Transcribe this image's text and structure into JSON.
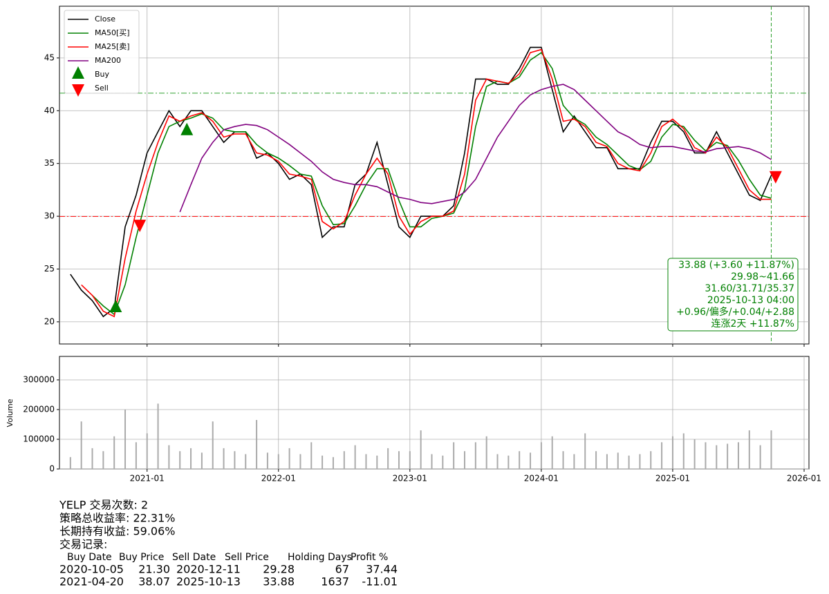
{
  "chart_data": [
    {
      "type": "line",
      "x": [
        "2020-06",
        "2020-07",
        "2020-08",
        "2020-09",
        "2020-10",
        "2020-11",
        "2020-12",
        "2021-01",
        "2021-02",
        "2021-03",
        "2021-04",
        "2021-05",
        "2021-06",
        "2021-07",
        "2021-08",
        "2021-09",
        "2021-10",
        "2021-11",
        "2021-12",
        "2022-01",
        "2022-02",
        "2022-03",
        "2022-04",
        "2022-05",
        "2022-06",
        "2022-07",
        "2022-08",
        "2022-09",
        "2022-10",
        "2022-11",
        "2022-12",
        "2023-01",
        "2023-02",
        "2023-03",
        "2023-04",
        "2023-05",
        "2023-06",
        "2023-07",
        "2023-08",
        "2023-09",
        "2023-10",
        "2023-11",
        "2023-12",
        "2024-01",
        "2024-02",
        "2024-03",
        "2024-04",
        "2024-05",
        "2024-06",
        "2024-07",
        "2024-08",
        "2024-09",
        "2024-10",
        "2024-11",
        "2024-12",
        "2025-01",
        "2025-02",
        "2025-03",
        "2025-04",
        "2025-05",
        "2025-06",
        "2025-07",
        "2025-08",
        "2025-09",
        "2025-10"
      ],
      "series": [
        {
          "name": "Close",
          "color": "#000000",
          "values": [
            24.5,
            23,
            22,
            20.5,
            21.3,
            29,
            32,
            36,
            38,
            40,
            38.5,
            40,
            40,
            38.5,
            37,
            38,
            38,
            35.5,
            36,
            35,
            33.5,
            34,
            33,
            28,
            29,
            29,
            33,
            34,
            37,
            33,
            29,
            28,
            30,
            30,
            30,
            31,
            36,
            43,
            43,
            42.5,
            42.5,
            44,
            46,
            46,
            42,
            38,
            39.5,
            38,
            36.5,
            36.5,
            34.5,
            34.5,
            34.5,
            37,
            39,
            39,
            38,
            36,
            36,
            38,
            36,
            34,
            32,
            31.5,
            33.88
          ]
        },
        {
          "name": "MA50[买]",
          "color": "#008000",
          "values": [
            null,
            null,
            22.5,
            21.5,
            20.7,
            23.5,
            28,
            32,
            36,
            38.5,
            39,
            39.3,
            39.7,
            39.3,
            38.2,
            38,
            38,
            36.8,
            36,
            35.5,
            34.8,
            34,
            33.8,
            31,
            29.2,
            29.3,
            31,
            33,
            34.5,
            34.5,
            31.5,
            29,
            29,
            29.8,
            30,
            30.3,
            32.5,
            38.5,
            42.3,
            42.8,
            42.6,
            43.2,
            44.8,
            45.5,
            44,
            40.5,
            39.3,
            38.7,
            37.5,
            36.8,
            35.8,
            34.8,
            34.4,
            35.2,
            37.5,
            38.7,
            38.5,
            37.2,
            36.2,
            37,
            36.7,
            35.3,
            33.5,
            32,
            31.71
          ]
        },
        {
          "name": "MA25[卖]",
          "color": "#ff0000",
          "values": [
            null,
            23.5,
            22.5,
            21,
            20.5,
            26,
            30.5,
            34,
            37,
            39.5,
            39,
            39.5,
            39.8,
            39,
            37.5,
            37.8,
            37.8,
            36,
            35.8,
            35.2,
            34,
            33.8,
            33.5,
            29.5,
            28.8,
            29.5,
            32,
            34,
            35.5,
            34,
            30,
            28.3,
            29.5,
            30,
            30,
            30.5,
            34,
            41,
            43,
            42.8,
            42.6,
            43.5,
            45.5,
            45.8,
            43,
            39,
            39.2,
            38.5,
            37,
            36.6,
            35,
            34.5,
            34.3,
            36,
            38.5,
            39.2,
            38.3,
            36.5,
            36,
            37.5,
            36.5,
            34.5,
            32.5,
            31.6,
            31.6
          ]
        },
        {
          "name": "MA200",
          "color": "#800080",
          "values": [
            null,
            null,
            null,
            null,
            null,
            null,
            null,
            null,
            null,
            null,
            30.4,
            33,
            35.5,
            37,
            38.2,
            38.5,
            38.7,
            38.6,
            38.2,
            37.5,
            36.8,
            36,
            35.2,
            34.2,
            33.5,
            33.2,
            33,
            33,
            32.8,
            32.3,
            31.8,
            31.6,
            31.3,
            31.2,
            31.4,
            31.6,
            32.3,
            33.5,
            35.5,
            37.5,
            39,
            40.5,
            41.5,
            42,
            42.3,
            42.5,
            42,
            41,
            40,
            39,
            38,
            37.5,
            36.8,
            36.5,
            36.6,
            36.6,
            36.4,
            36.2,
            36.1,
            36.4,
            36.5,
            36.6,
            36.4,
            36,
            35.37
          ]
        }
      ],
      "markers": [
        {
          "name": "Buy",
          "color": "#008000"
        },
        {
          "name": "Sell",
          "color": "#ff0000"
        }
      ],
      "hlines": [
        {
          "value": 29.98,
          "color": "#ff0000"
        },
        {
          "value": 41.66,
          "color": "#2ca02c"
        }
      ],
      "vline_color": "#2ca02c",
      "annotation": [
        "33.88 (+3.60 +11.87%)",
        "29.98~41.66",
        "31.60/31.71/35.37",
        "2025-10-13 04:00",
        "+0.96/偏多/+0.04/+2.88",
        "连涨2天 +11.87%"
      ],
      "annotation_color": "#008000",
      "xlim": [
        "2020-05",
        "2026-01"
      ],
      "xticks": [
        "2021-01",
        "2022-01",
        "2023-01",
        "2024-01",
        "2025-01",
        "2026-01"
      ],
      "ylim": [
        17.9,
        49.9
      ],
      "yticks": [
        20,
        25,
        30,
        35,
        40,
        45
      ],
      "grid": true,
      "legend": "upper left"
    },
    {
      "type": "bar",
      "ylabel": "Volume",
      "x": [
        "2020-06",
        "2020-07",
        "2020-08",
        "2020-09",
        "2020-10",
        "2020-11",
        "2020-12",
        "2021-01",
        "2021-02",
        "2021-03",
        "2021-04",
        "2021-05",
        "2021-06",
        "2021-07",
        "2021-08",
        "2021-09",
        "2021-10",
        "2021-11",
        "2021-12",
        "2022-01",
        "2022-02",
        "2022-03",
        "2022-04",
        "2022-05",
        "2022-06",
        "2022-07",
        "2022-08",
        "2022-09",
        "2022-10",
        "2022-11",
        "2022-12",
        "2023-01",
        "2023-02",
        "2023-03",
        "2023-04",
        "2023-05",
        "2023-06",
        "2023-07",
        "2023-08",
        "2023-09",
        "2023-10",
        "2023-11",
        "2023-12",
        "2024-01",
        "2024-02",
        "2024-03",
        "2024-04",
        "2024-05",
        "2024-06",
        "2024-07",
        "2024-08",
        "2024-09",
        "2024-10",
        "2024-11",
        "2024-12",
        "2025-01",
        "2025-02",
        "2025-03",
        "2025-04",
        "2025-05",
        "2025-06",
        "2025-07",
        "2025-08",
        "2025-09",
        "2025-10"
      ],
      "values": [
        40000,
        160000,
        70000,
        60000,
        110000,
        200000,
        90000,
        120000,
        220000,
        80000,
        60000,
        70000,
        55000,
        160000,
        70000,
        60000,
        50000,
        165000,
        55000,
        50000,
        70000,
        50000,
        90000,
        45000,
        40000,
        60000,
        80000,
        50000,
        45000,
        70000,
        60000,
        60000,
        130000,
        50000,
        45000,
        90000,
        60000,
        90000,
        110000,
        50000,
        45000,
        60000,
        55000,
        90000,
        110000,
        60000,
        50000,
        120000,
        60000,
        50000,
        55000,
        45000,
        50000,
        60000,
        90000,
        110000,
        120000,
        100000,
        90000,
        80000,
        85000,
        90000,
        130000,
        80000,
        130000
      ],
      "color": "#aaaaaa",
      "xlim": [
        "2020-05",
        "2026-01"
      ],
      "xticks": [
        "2021-01",
        "2022-01",
        "2023-01",
        "2024-01",
        "2025-01",
        "2026-01"
      ],
      "ylim": [
        0,
        379000
      ],
      "yticks": [
        0,
        100000,
        200000,
        300000
      ],
      "grid": true
    }
  ],
  "summary": [
    "YELP 交易次数: 2",
    "策略总收益率: 22.31%",
    "长期持有收益: 59.06%",
    "交易记录:"
  ],
  "trades": {
    "header": [
      "Buy Date",
      "Buy Price",
      "Sell Date",
      "Sell Price",
      "Holding Days",
      "Profit %"
    ],
    "rows": [
      [
        "2020-10-05",
        "21.30",
        "2020-12-11",
        "29.28",
        "67",
        "37.44"
      ],
      [
        "2021-04-20",
        "38.07",
        "2025-10-13",
        "33.88",
        "1637",
        "-11.01"
      ]
    ]
  }
}
